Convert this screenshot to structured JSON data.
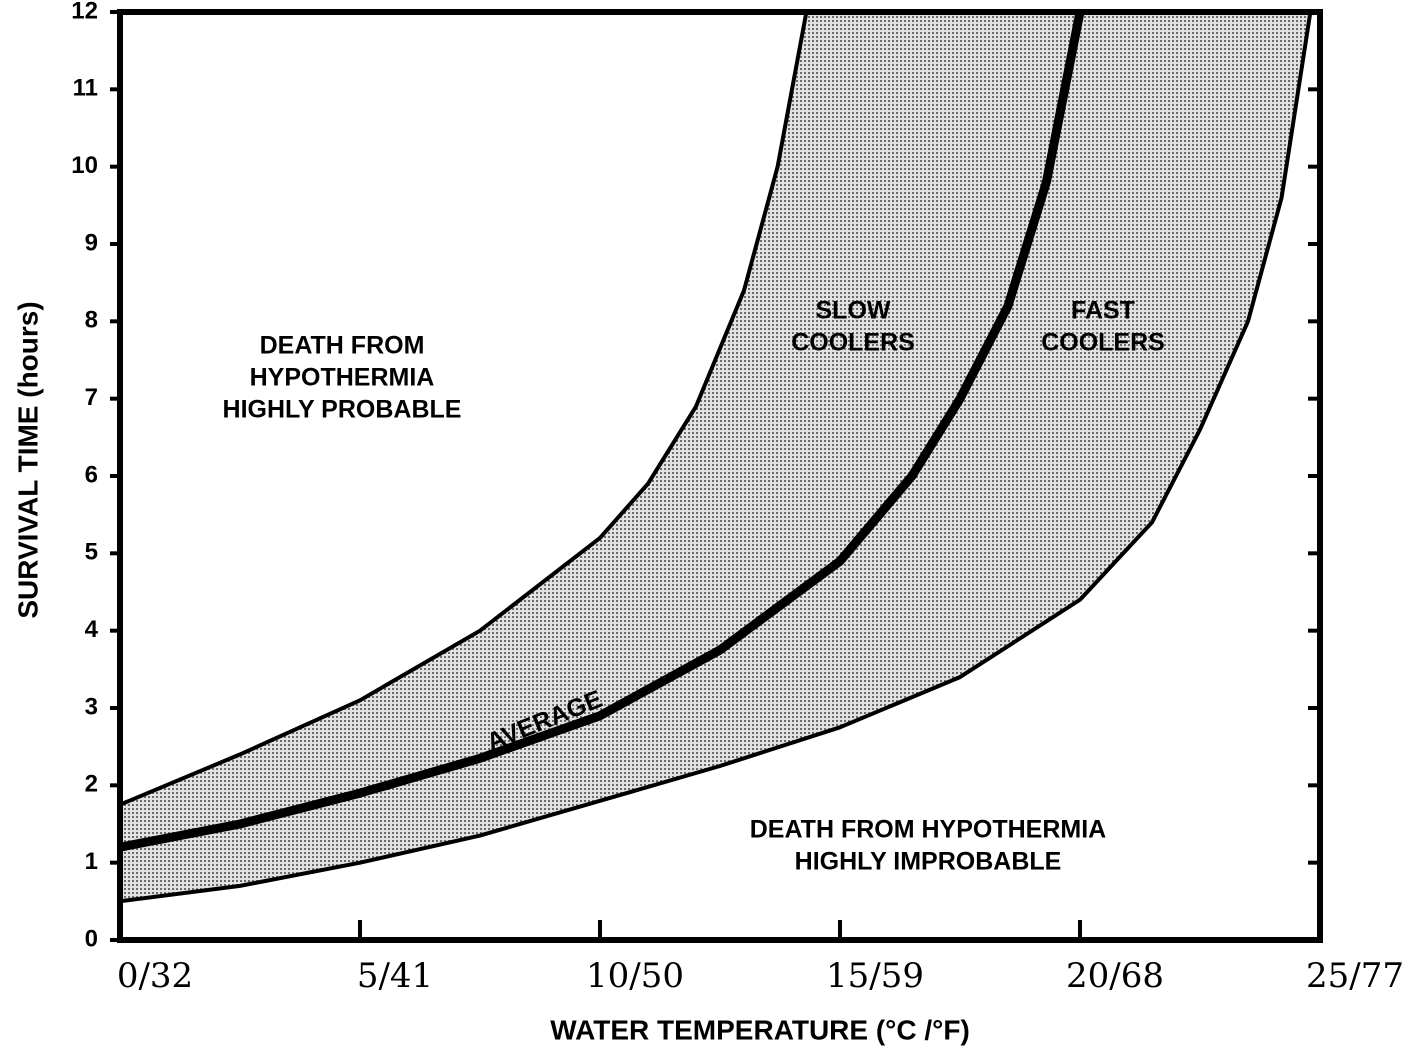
{
  "chart_data": {
    "type": "line",
    "xlabel": "WATER TEMPERATURE (°C /°F)",
    "ylabel": "SURVIVAL TIME (hours)",
    "xlim": [
      0,
      25
    ],
    "ylim": [
      0,
      12
    ],
    "xticks": [
      {
        "value": 0,
        "label": "0/32"
      },
      {
        "value": 5,
        "label": "5/41"
      },
      {
        "value": 10,
        "label": "10/50"
      },
      {
        "value": 15,
        "label": "15/59"
      },
      {
        "value": 20,
        "label": "20/68"
      },
      {
        "value": 25,
        "label": "25/77"
      }
    ],
    "yticks": [
      0,
      1,
      2,
      3,
      4,
      5,
      6,
      7,
      8,
      9,
      10,
      11,
      12
    ],
    "series": [
      {
        "color": "#000000",
        "x": [
          0,
          2.5,
          5,
          7.5,
          10,
          11,
          12,
          13,
          13.7,
          14.3
        ],
        "values": [
          1.75,
          2.4,
          3.1,
          4.0,
          5.2,
          5.9,
          6.9,
          8.4,
          10,
          12
        ]
      },
      {
        "name": "AVERAGE",
        "color": "#000000",
        "x": [
          0,
          2.5,
          5,
          7.5,
          10,
          12.5,
          15,
          16.5,
          17.5,
          18.5,
          19.3,
          20
        ],
        "values": [
          1.2,
          1.5,
          1.9,
          2.35,
          2.9,
          3.75,
          4.9,
          6.0,
          7.0,
          8.2,
          9.8,
          12
        ]
      },
      {
        "color": "#000000",
        "x": [
          0,
          2.5,
          5,
          7.5,
          10,
          12.5,
          15,
          17.5,
          20,
          21.5,
          22.5,
          23.5,
          24.2,
          24.8
        ],
        "values": [
          0.5,
          0.7,
          1.0,
          1.35,
          1.8,
          2.25,
          2.75,
          3.4,
          4.4,
          5.4,
          6.6,
          8.0,
          9.6,
          12
        ]
      }
    ],
    "annotations": [
      {
        "lines": [
          "DEATH FROM",
          "HYPOTHERMIA",
          "HIGHLY PROBABLE"
        ]
      },
      {
        "lines": [
          "SLOW",
          "COOLERS"
        ]
      },
      {
        "lines": [
          "FAST",
          "COOLERS"
        ]
      },
      {
        "lines": [
          "DEATH FROM HYPOTHERMIA",
          "HIGHLY IMPROBABLE"
        ]
      }
    ]
  }
}
